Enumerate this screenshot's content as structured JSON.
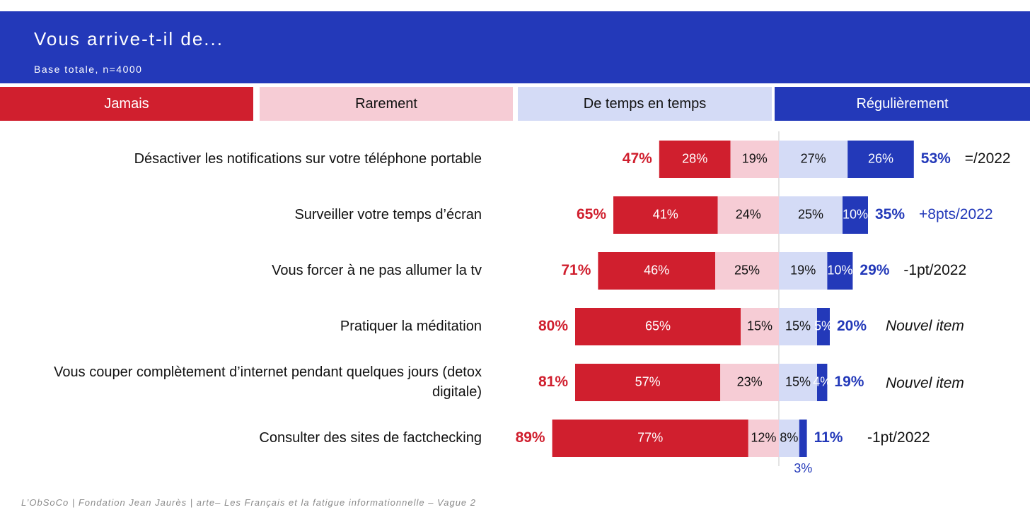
{
  "header": {
    "title": "Vous arrive-t-il de...",
    "subtitle": "Base totale, n=4000"
  },
  "legend": {
    "jamais": "Jamais",
    "rarement": "Rarement",
    "de_temps_en_temps": "De temps en temps",
    "regulierement": "Régulièrement"
  },
  "colors": {
    "jamais": "#d01f2e",
    "rarement": "#f6ccd5",
    "de_temps_en_temps": "#d4dbf6",
    "regulierement": "#2339b9",
    "red_text": "#d01f2e",
    "blue_text": "#2339b9"
  },
  "chart_data": {
    "type": "bar",
    "subtype": "diverging-stacked-horizontal",
    "categories": [
      "Désactiver les notifications sur votre téléphone portable",
      "Surveiller votre temps d’écran",
      "Vous forcer à ne pas allumer la tv",
      "Pratiquer la méditation",
      "Vous couper complètement d’internet pendant quelques jours (detox digitale)",
      "Consulter des sites de factchecking"
    ],
    "series": [
      {
        "name": "Jamais",
        "values": [
          28,
          41,
          46,
          65,
          57,
          77
        ],
        "labels": [
          "28%",
          "41%",
          "46%",
          "65%",
          "57%",
          "77%"
        ]
      },
      {
        "name": "Rarement",
        "values": [
          19,
          24,
          25,
          15,
          23,
          12
        ],
        "labels": [
          "19%",
          "24%",
          "25%",
          "15%",
          "23%",
          "12%"
        ]
      },
      {
        "name": "De temps en temps",
        "values": [
          27,
          25,
          19,
          15,
          15,
          8
        ],
        "labels": [
          "27%",
          "25%",
          "19%",
          "15%",
          "15%",
          "8%"
        ]
      },
      {
        "name": "Régulièrement",
        "values": [
          26,
          10,
          10,
          5,
          4,
          3
        ],
        "labels": [
          "26%",
          "10%",
          "10%",
          "5%",
          "4%",
          "3%"
        ]
      }
    ],
    "totals_negative": [
      "47%",
      "65%",
      "71%",
      "80%",
      "81%",
      "89%"
    ],
    "totals_positive": [
      "53%",
      "35%",
      "29%",
      "20%",
      "19%",
      "11%"
    ],
    "evolution": [
      "=/2022",
      "+8pts/2022",
      "-1pt/2022",
      "Nouvel item",
      "Nouvel item",
      "-1pt/2022"
    ]
  },
  "footer": "L’ObSoCo | Fondation Jean Jaurès | arte– Les Français et la fatigue informationnelle – Vague 2"
}
